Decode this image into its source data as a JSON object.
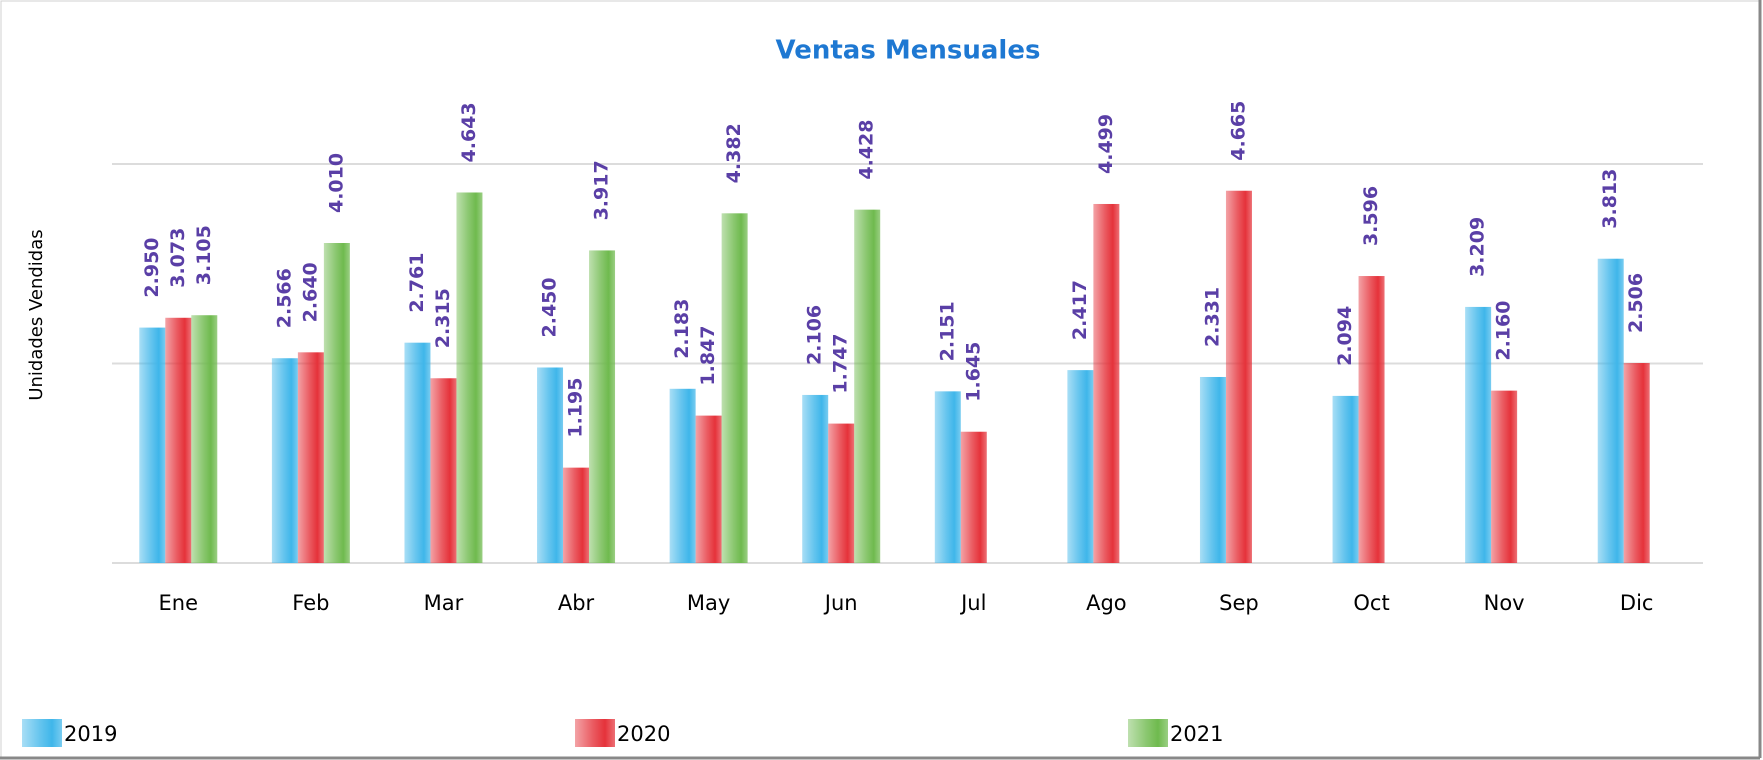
{
  "chart_data": {
    "type": "bar",
    "title": "Ventas Mensuales",
    "y_label": "Unidades Vendidas",
    "categories": [
      "Ene",
      "Feb",
      "Mar",
      "Abr",
      "May",
      "Jun",
      "Jul",
      "Ago",
      "Sep",
      "Oct",
      "Nov",
      "Dic"
    ],
    "series": [
      {
        "name": "2019",
        "color": "#3fb6ea",
        "values": [
          2950,
          2566,
          2761,
          2450,
          2183,
          2106,
          2151,
          2417,
          2331,
          2094,
          3209,
          3813
        ],
        "value_labels": [
          "2.950",
          "2.566",
          "2.761",
          "2.450",
          "2.183",
          "2.106",
          "2.151",
          "2.417",
          "2.331",
          "2.094",
          "3.209",
          "3.813"
        ]
      },
      {
        "name": "2020",
        "color": "#e5323a",
        "values": [
          3073,
          2640,
          2315,
          1195,
          1847,
          1747,
          1645,
          4499,
          4665,
          3596,
          2160,
          2506
        ],
        "value_labels": [
          "3.073",
          "2.640",
          "2.315",
          "1.195",
          "1.847",
          "1.747",
          "1.645",
          "4.499",
          "4.665",
          "3.596",
          "2.160",
          "2.506"
        ]
      },
      {
        "name": "2021",
        "color": "#6fba4e",
        "values": [
          3105,
          4010,
          4643,
          3917,
          4382,
          4428,
          null,
          null,
          null,
          null,
          null,
          null
        ],
        "value_labels": [
          "3.105",
          "4.010",
          "4.643",
          "3.917",
          "4.382",
          "4.428",
          null,
          null,
          null,
          null,
          null,
          null
        ]
      }
    ],
    "ylim": [
      0,
      5000
    ],
    "yticks": [
      0,
      2500,
      5000
    ],
    "grid": true,
    "tick_labels": false,
    "legend": "bottom"
  }
}
